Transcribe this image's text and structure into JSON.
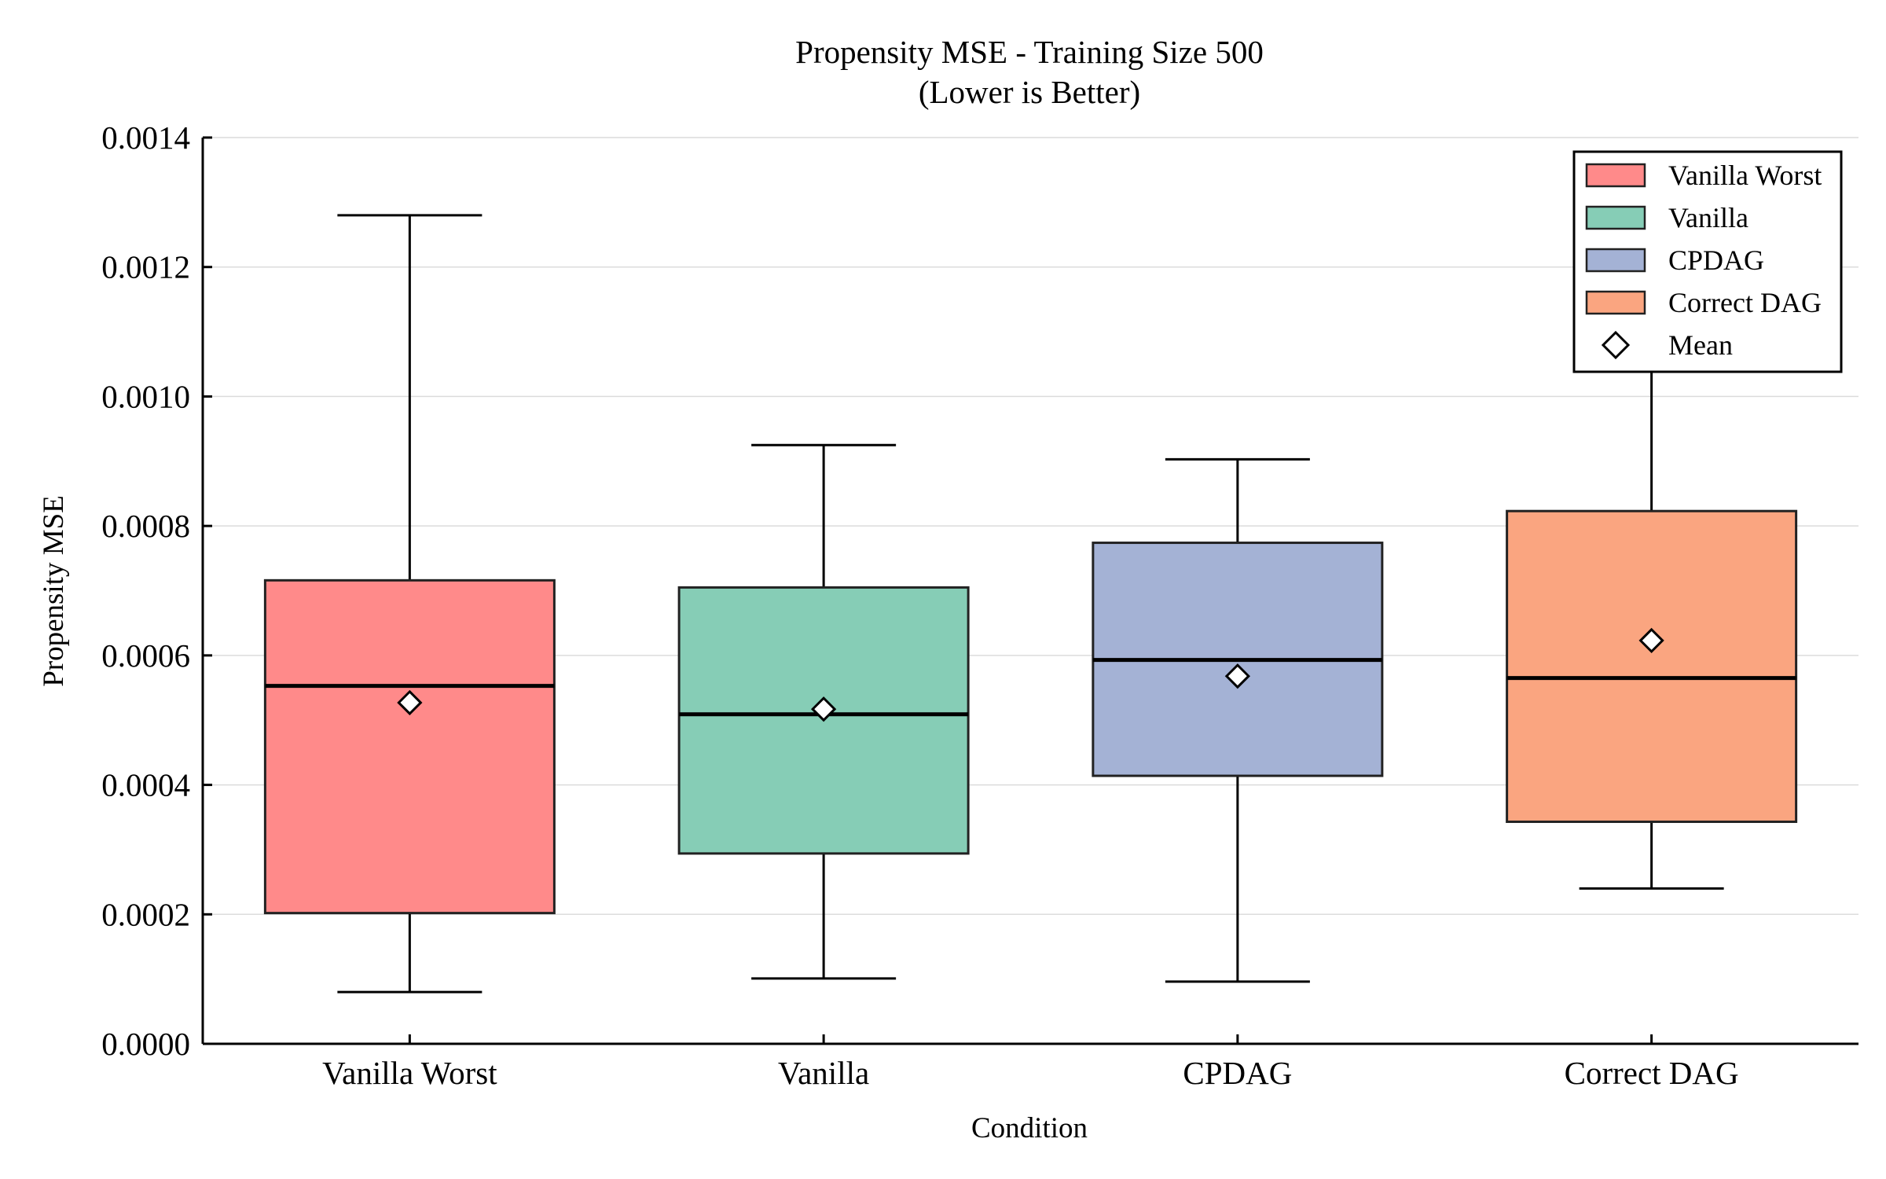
{
  "chart_data": {
    "type": "box",
    "title": "Propensity MSE - Training Size 500",
    "subtitle": "(Lower is Better)",
    "xlabel": "Condition",
    "ylabel": "Propensity MSE",
    "ylim": [
      0,
      0.0014
    ],
    "yticks": [
      "0.0000",
      "0.0002",
      "0.0004",
      "0.0006",
      "0.0008",
      "0.0010",
      "0.0012",
      "0.0014"
    ],
    "grid": "horizontal",
    "legend_position": "top-right",
    "categories": [
      "Vanilla Worst",
      "Vanilla",
      "CPDAG",
      "Correct DAG"
    ],
    "series": [
      {
        "name": "Vanilla Worst",
        "color": "#ff8a8a",
        "whisker_low": 8e-05,
        "q1": 0.000202,
        "median": 0.000553,
        "q3": 0.000716,
        "whisker_high": 0.00128,
        "mean": 0.000527
      },
      {
        "name": "Vanilla",
        "color": "#86cdb6",
        "whisker_low": 0.000101,
        "q1": 0.000294,
        "median": 0.000509,
        "q3": 0.000705,
        "whisker_high": 0.000925,
        "mean": 0.000517
      },
      {
        "name": "CPDAG",
        "color": "#a4b2d5",
        "whisker_low": 9.6e-05,
        "q1": 0.000414,
        "median": 0.000593,
        "q3": 0.000774,
        "whisker_high": 0.000903,
        "mean": 0.000568
      },
      {
        "name": "Correct DAG",
        "color": "#faa580",
        "whisker_low": 0.00024,
        "q1": 0.000343,
        "median": 0.000565,
        "q3": 0.000823,
        "whisker_high": 0.00105,
        "mean": 0.000623
      }
    ],
    "legend": [
      "Vanilla Worst",
      "Vanilla",
      "CPDAG",
      "Correct DAG",
      "Mean"
    ]
  }
}
